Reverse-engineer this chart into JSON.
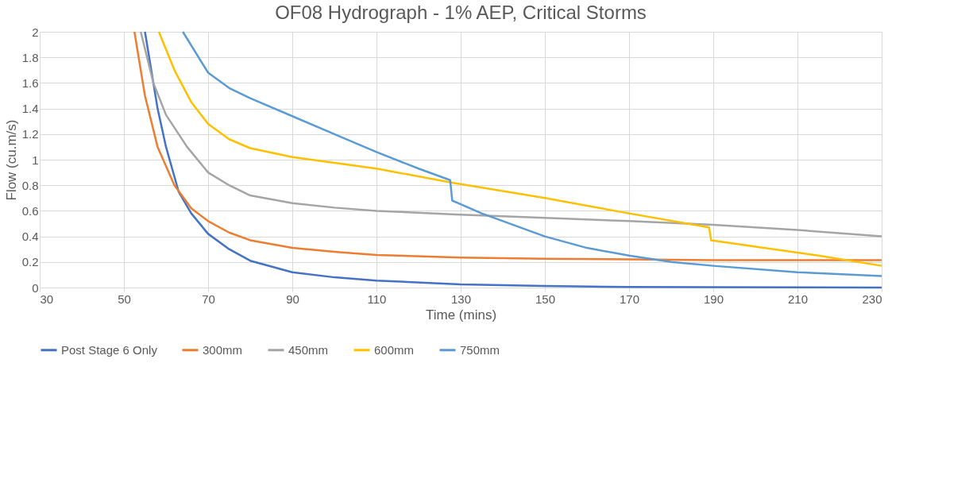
{
  "chart_data": {
    "type": "line",
    "title": "OF08 Hydrograph - 1% AEP, Critical Storms",
    "xlabel": "Time (mins)",
    "ylabel": "Flow (cu.m/s)",
    "xlim": [
      30,
      230
    ],
    "xticks": [
      30,
      50,
      70,
      90,
      110,
      130,
      150,
      170,
      190,
      210,
      230
    ],
    "ylim": [
      0,
      2
    ],
    "yticks": [
      0,
      0.2,
      0.4,
      0.6,
      0.8,
      1,
      1.2,
      1.4,
      1.6,
      1.8,
      2
    ],
    "grid": true,
    "legend": "bottom",
    "marker": "none",
    "line_style": "solid",
    "series": [
      {
        "name": "Post Stage 6 Only",
        "color": "#4472c4",
        "x": [
          55,
          58,
          60,
          63,
          66,
          70,
          75,
          80,
          90,
          100,
          110,
          130,
          150,
          170,
          190,
          230
        ],
        "values": [
          2,
          1.4,
          1.1,
          0.75,
          0.58,
          0.42,
          0.3,
          0.21,
          0.12,
          0.08,
          0.055,
          0.025,
          0.012,
          0.005,
          0.003,
          0
        ]
      },
      {
        "name": "300mm",
        "color": "#ed7d31",
        "x": [
          52.5,
          55,
          58,
          62,
          66,
          70,
          75,
          80,
          90,
          100,
          110,
          130,
          150,
          170,
          190,
          230
        ],
        "values": [
          2,
          1.5,
          1.1,
          0.8,
          0.62,
          0.52,
          0.43,
          0.37,
          0.31,
          0.28,
          0.255,
          0.235,
          0.225,
          0.22,
          0.215,
          0.215
        ]
      },
      {
        "name": "450mm",
        "color": "#a5a5a5",
        "x": [
          54,
          57,
          60,
          65,
          70,
          75,
          80,
          90,
          100,
          110,
          130,
          150,
          170,
          190,
          210,
          230
        ],
        "values": [
          2,
          1.6,
          1.35,
          1.1,
          0.9,
          0.8,
          0.72,
          0.66,
          0.625,
          0.6,
          0.57,
          0.545,
          0.52,
          0.49,
          0.45,
          0.4
        ]
      },
      {
        "name": "600mm",
        "color": "#ffc000",
        "x": [
          58.3,
          62,
          66,
          70,
          75,
          80,
          90,
          110,
          128,
          150,
          170,
          189,
          189.5,
          200,
          215,
          230
        ],
        "values": [
          2,
          1.7,
          1.45,
          1.28,
          1.16,
          1.09,
          1.02,
          0.93,
          0.82,
          0.7,
          0.58,
          0.47,
          0.37,
          0.32,
          0.25,
          0.17
        ]
      },
      {
        "name": "750mm",
        "color": "#5b9bd5",
        "x": [
          64,
          70,
          75,
          80,
          90,
          100,
          110,
          120,
          127.5,
          128,
          135,
          150,
          160,
          170,
          180,
          190,
          210,
          230
        ],
        "values": [
          2,
          1.68,
          1.56,
          1.48,
          1.34,
          1.2,
          1.06,
          0.93,
          0.84,
          0.68,
          0.58,
          0.4,
          0.31,
          0.25,
          0.2,
          0.17,
          0.12,
          0.09
        ]
      }
    ]
  }
}
